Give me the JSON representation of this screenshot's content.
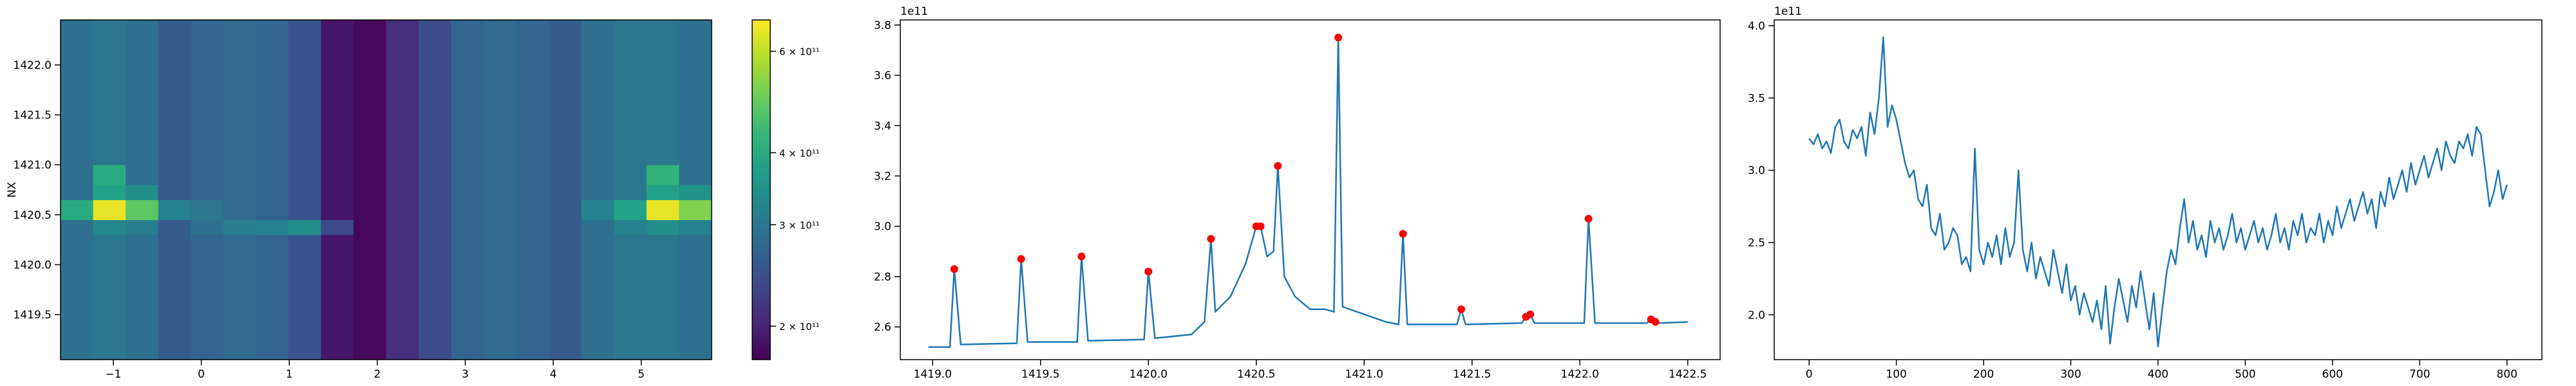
{
  "chart_data": [
    {
      "type": "heatmap",
      "y_label": "NX",
      "colormap": "viridis",
      "color_scale": "log",
      "clim": [
        175000000000.0,
        680000000000.0
      ],
      "xlim": [
        -1.6,
        5.8
      ],
      "ylim": [
        1419.05,
        1422.45
      ],
      "xticks": [
        {
          "value": -1,
          "label": "−1"
        },
        0,
        1,
        2,
        3,
        4,
        5
      ],
      "yticks": [
        1419.5,
        {
          "value": 1420.0,
          "label": "1420.0"
        },
        1420.5,
        {
          "value": 1421.0,
          "label": "1421.0"
        },
        1421.5,
        {
          "value": 1422.0,
          "label": "1422.0"
        }
      ],
      "colorbar_ticks": [
        {
          "value": 200000000000.0,
          "label": "2 × 10¹¹"
        },
        {
          "value": 300000000000.0,
          "label": "3 × 10¹¹"
        },
        {
          "value": 400000000000.0,
          "label": "4 × 10¹¹"
        },
        {
          "value": 600000000000.0,
          "label": "6 × 10¹¹"
        }
      ],
      "x_edges": [
        -1.6,
        -1.23,
        -0.86,
        -0.49,
        -0.12,
        0.25,
        0.62,
        0.99,
        1.36,
        1.73,
        2.1,
        2.47,
        2.84,
        3.21,
        3.58,
        3.95,
        4.32,
        4.69,
        5.06,
        5.43,
        5.8
      ],
      "y_edges": [
        1419.05,
        1419.9,
        1420.3,
        1420.45,
        1420.65,
        1420.8,
        1421.0,
        1421.6,
        1422.45
      ],
      "z": [
        [
          290000000000.0,
          300000000000.0,
          290000000000.0,
          260000000000.0,
          270000000000.0,
          280000000000.0,
          270000000000.0,
          250000000000.0,
          190000000000.0,
          180000000000.0,
          210000000000.0,
          240000000000.0,
          270000000000.0,
          280000000000.0,
          270000000000.0,
          260000000000.0,
          290000000000.0,
          300000000000.0,
          300000000000.0,
          290000000000.0
        ],
        [
          290000000000.0,
          300000000000.0,
          290000000000.0,
          260000000000.0,
          270000000000.0,
          280000000000.0,
          270000000000.0,
          250000000000.0,
          190000000000.0,
          180000000000.0,
          210000000000.0,
          240000000000.0,
          270000000000.0,
          280000000000.0,
          270000000000.0,
          260000000000.0,
          290000000000.0,
          300000000000.0,
          300000000000.0,
          290000000000.0
        ],
        [
          290000000000.0,
          330000000000.0,
          310000000000.0,
          260000000000.0,
          290000000000.0,
          310000000000.0,
          320000000000.0,
          340000000000.0,
          240000000000.0,
          180000000000.0,
          210000000000.0,
          240000000000.0,
          270000000000.0,
          280000000000.0,
          270000000000.0,
          260000000000.0,
          290000000000.0,
          320000000000.0,
          340000000000.0,
          320000000000.0
        ],
        [
          400000000000.0,
          650000000000.0,
          480000000000.0,
          320000000000.0,
          300000000000.0,
          280000000000.0,
          270000000000.0,
          250000000000.0,
          190000000000.0,
          180000000000.0,
          210000000000.0,
          240000000000.0,
          270000000000.0,
          280000000000.0,
          270000000000.0,
          260000000000.0,
          320000000000.0,
          380000000000.0,
          650000000000.0,
          520000000000.0
        ],
        [
          290000000000.0,
          380000000000.0,
          340000000000.0,
          260000000000.0,
          270000000000.0,
          280000000000.0,
          270000000000.0,
          250000000000.0,
          190000000000.0,
          180000000000.0,
          210000000000.0,
          240000000000.0,
          270000000000.0,
          280000000000.0,
          270000000000.0,
          260000000000.0,
          290000000000.0,
          300000000000.0,
          380000000000.0,
          350000000000.0
        ],
        [
          290000000000.0,
          400000000000.0,
          290000000000.0,
          260000000000.0,
          270000000000.0,
          280000000000.0,
          270000000000.0,
          250000000000.0,
          190000000000.0,
          180000000000.0,
          210000000000.0,
          240000000000.0,
          270000000000.0,
          280000000000.0,
          270000000000.0,
          260000000000.0,
          290000000000.0,
          300000000000.0,
          420000000000.0,
          290000000000.0
        ],
        [
          290000000000.0,
          300000000000.0,
          290000000000.0,
          260000000000.0,
          270000000000.0,
          280000000000.0,
          270000000000.0,
          250000000000.0,
          190000000000.0,
          180000000000.0,
          210000000000.0,
          240000000000.0,
          270000000000.0,
          280000000000.0,
          270000000000.0,
          260000000000.0,
          290000000000.0,
          300000000000.0,
          300000000000.0,
          290000000000.0
        ],
        [
          290000000000.0,
          300000000000.0,
          290000000000.0,
          260000000000.0,
          270000000000.0,
          280000000000.0,
          270000000000.0,
          250000000000.0,
          190000000000.0,
          180000000000.0,
          210000000000.0,
          240000000000.0,
          270000000000.0,
          280000000000.0,
          270000000000.0,
          260000000000.0,
          290000000000.0,
          300000000000.0,
          300000000000.0,
          290000000000.0
        ]
      ]
    },
    {
      "type": "line",
      "y_offset_label": "1e11",
      "xlim": [
        1418.85,
        1422.65
      ],
      "ylim": [
        2.47,
        3.82
      ],
      "xticks": [
        {
          "value": 1419.0,
          "label": "1419.0"
        },
        1419.5,
        {
          "value": 1420.0,
          "label": "1420.0"
        },
        1420.5,
        {
          "value": 1421.0,
          "label": "1421.0"
        },
        1421.5,
        {
          "value": 1422.0,
          "label": "1422.0"
        },
        1422.5
      ],
      "yticks": [
        2.6,
        2.8,
        {
          "value": 3.0,
          "label": "3.0"
        },
        3.2,
        3.4,
        3.6,
        3.8
      ],
      "series": [
        {
          "style": "line",
          "color": "#1f77b4",
          "x": [
            1418.98,
            1419.08,
            1419.1,
            1419.13,
            1419.39,
            1419.41,
            1419.44,
            1419.67,
            1419.69,
            1419.72,
            1419.98,
            1420.0,
            1420.03,
            1420.2,
            1420.26,
            1420.29,
            1420.31,
            1420.38,
            1420.45,
            1420.5,
            1420.52,
            1420.55,
            1420.58,
            1420.6,
            1420.63,
            1420.68,
            1420.75,
            1420.82,
            1420.86,
            1420.88,
            1420.9,
            1421.0,
            1421.1,
            1421.16,
            1421.18,
            1421.2,
            1421.43,
            1421.45,
            1421.47,
            1421.73,
            1421.75,
            1421.77,
            1421.79,
            1422.02,
            1422.04,
            1422.07,
            1422.31,
            1422.33,
            1422.35,
            1422.37,
            1422.5
          ],
          "values": [
            2.52,
            2.52,
            2.83,
            2.53,
            2.535,
            2.87,
            2.54,
            2.54,
            2.88,
            2.545,
            2.55,
            2.82,
            2.555,
            2.57,
            2.62,
            2.95,
            2.66,
            2.72,
            2.85,
            3.0,
            3.0,
            2.88,
            2.9,
            3.24,
            2.8,
            2.72,
            2.67,
            2.67,
            2.66,
            3.75,
            2.68,
            2.65,
            2.62,
            2.61,
            2.97,
            2.61,
            2.61,
            2.67,
            2.61,
            2.615,
            2.64,
            2.65,
            2.615,
            2.615,
            3.03,
            2.615,
            2.615,
            2.63,
            2.62,
            2.615,
            2.62
          ]
        },
        {
          "style": "markers",
          "color": "#ff0000",
          "x": [
            1419.1,
            1419.41,
            1419.69,
            1420.0,
            1420.29,
            1420.5,
            1420.52,
            1420.6,
            1420.88,
            1421.18,
            1421.45,
            1421.75,
            1421.77,
            1422.04,
            1422.33,
            1422.35
          ],
          "values": [
            2.83,
            2.87,
            2.88,
            2.82,
            2.95,
            3.0,
            3.0,
            3.24,
            3.75,
            2.97,
            2.67,
            2.64,
            2.65,
            3.03,
            2.63,
            2.62
          ]
        }
      ]
    },
    {
      "type": "line",
      "y_offset_label": "1e11",
      "xlim": [
        -40,
        840
      ],
      "ylim": [
        1.69,
        4.04
      ],
      "xticks": [
        0,
        100,
        200,
        300,
        400,
        500,
        600,
        700,
        800
      ],
      "yticks": [
        {
          "value": 2.0,
          "label": "2.0"
        },
        2.5,
        {
          "value": 3.0,
          "label": "3.0"
        },
        3.5,
        {
          "value": 4.0,
          "label": "4.0"
        }
      ],
      "series": [
        {
          "style": "line",
          "color": "#1f77b4",
          "x": [
            0,
            5,
            10,
            15,
            20,
            25,
            30,
            35,
            40,
            45,
            50,
            55,
            60,
            65,
            70,
            75,
            80,
            85,
            90,
            95,
            100,
            105,
            110,
            115,
            120,
            125,
            130,
            135,
            140,
            145,
            150,
            155,
            160,
            165,
            170,
            175,
            180,
            185,
            190,
            195,
            200,
            205,
            210,
            215,
            220,
            225,
            230,
            235,
            240,
            245,
            250,
            255,
            260,
            265,
            270,
            275,
            280,
            285,
            290,
            295,
            300,
            305,
            310,
            315,
            320,
            325,
            330,
            335,
            340,
            345,
            350,
            355,
            360,
            365,
            370,
            375,
            380,
            385,
            390,
            395,
            400,
            405,
            410,
            415,
            420,
            425,
            430,
            435,
            440,
            445,
            450,
            455,
            460,
            465,
            470,
            475,
            480,
            485,
            490,
            495,
            500,
            505,
            510,
            515,
            520,
            525,
            530,
            535,
            540,
            545,
            550,
            555,
            560,
            565,
            570,
            575,
            580,
            585,
            590,
            595,
            600,
            605,
            610,
            615,
            620,
            625,
            630,
            635,
            640,
            645,
            650,
            655,
            660,
            665,
            670,
            675,
            680,
            685,
            690,
            695,
            700,
            705,
            710,
            715,
            720,
            725,
            730,
            735,
            740,
            745,
            750,
            755,
            760,
            765,
            770,
            775,
            780,
            785,
            790,
            795,
            800
          ],
          "values": [
            3.22,
            3.18,
            3.25,
            3.15,
            3.2,
            3.12,
            3.3,
            3.35,
            3.2,
            3.15,
            3.28,
            3.22,
            3.3,
            3.1,
            3.4,
            3.25,
            3.5,
            3.92,
            3.3,
            3.45,
            3.35,
            3.2,
            3.05,
            2.95,
            3.0,
            2.8,
            2.75,
            2.9,
            2.6,
            2.55,
            2.7,
            2.45,
            2.5,
            2.6,
            2.55,
            2.35,
            2.4,
            2.3,
            3.15,
            2.45,
            2.35,
            2.5,
            2.4,
            2.55,
            2.35,
            2.6,
            2.4,
            2.5,
            3.0,
            2.45,
            2.3,
            2.5,
            2.25,
            2.4,
            2.3,
            2.2,
            2.45,
            2.3,
            2.15,
            2.35,
            2.1,
            2.2,
            2.0,
            2.15,
            2.05,
            1.95,
            2.1,
            1.9,
            2.2,
            1.8,
            2.05,
            2.25,
            2.1,
            1.95,
            2.2,
            2.05,
            2.3,
            2.1,
            1.9,
            2.15,
            1.78,
            2.05,
            2.3,
            2.45,
            2.35,
            2.6,
            2.8,
            2.5,
            2.65,
            2.45,
            2.55,
            2.4,
            2.65,
            2.5,
            2.6,
            2.45,
            2.55,
            2.7,
            2.5,
            2.6,
            2.45,
            2.55,
            2.65,
            2.5,
            2.6,
            2.45,
            2.55,
            2.7,
            2.5,
            2.6,
            2.45,
            2.65,
            2.55,
            2.7,
            2.5,
            2.6,
            2.55,
            2.7,
            2.5,
            2.65,
            2.55,
            2.75,
            2.6,
            2.7,
            2.8,
            2.65,
            2.75,
            2.85,
            2.7,
            2.8,
            2.6,
            2.85,
            2.75,
            2.95,
            2.8,
            2.9,
            3.0,
            2.85,
            3.05,
            2.9,
            3.0,
            3.1,
            2.95,
            3.05,
            3.15,
            3.0,
            3.2,
            3.1,
            3.05,
            3.2,
            3.15,
            3.25,
            3.1,
            3.3,
            3.25,
            3.0,
            2.75,
            2.85,
            3.0,
            2.8,
            2.9
          ]
        }
      ]
    }
  ]
}
